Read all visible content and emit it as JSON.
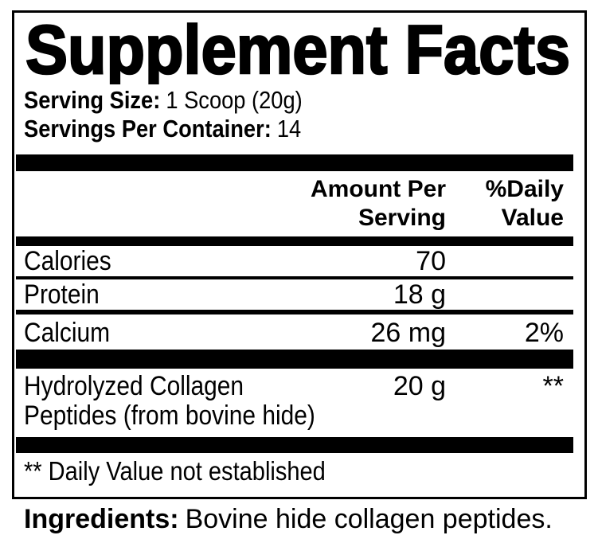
{
  "title": "Supplement Facts",
  "serving": {
    "size_label": "Serving Size:",
    "size_value": "1 Scoop (20g)",
    "per_container_label": "Servings Per Container:",
    "per_container_value": "14"
  },
  "table": {
    "header": {
      "amount": "Amount Per\nServing",
      "daily_value": "%Daily\nValue"
    },
    "rows": [
      {
        "name": "Calories",
        "amount": "70",
        "daily_value": ""
      },
      {
        "name": "Protein",
        "amount": "18 g",
        "daily_value": ""
      },
      {
        "name": "Calcium",
        "amount": "26 mg",
        "daily_value": "2%"
      },
      {
        "name": "Hydrolyzed Collagen\nPeptides (from bovine hide)",
        "amount": "20 g",
        "daily_value": "**"
      }
    ],
    "footnote": "** Daily Value not established"
  },
  "ingredients": {
    "label": "Ingredients:",
    "value": "Bovine hide collagen peptides."
  },
  "colors": {
    "ink": "#000000",
    "background": "#ffffff"
  }
}
